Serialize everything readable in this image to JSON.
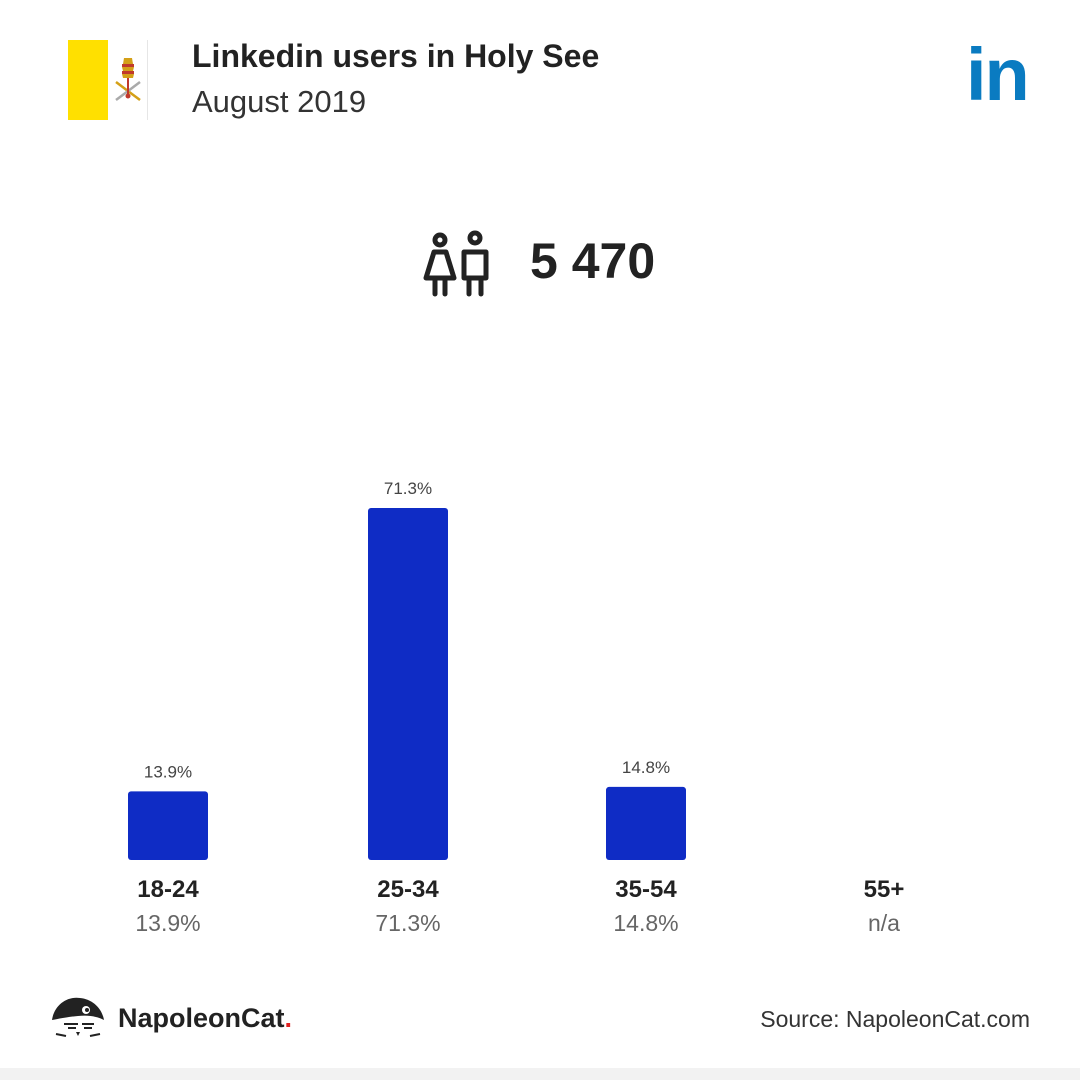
{
  "header": {
    "title": "Linkedin users in Holy See",
    "subtitle": "August 2019",
    "logo_text": "in"
  },
  "total": {
    "value": "5 470",
    "icon": "people-icon"
  },
  "chart_data": {
    "type": "bar",
    "categories": [
      "18-24",
      "25-34",
      "35-54",
      "55+"
    ],
    "values": [
      13.9,
      71.3,
      14.8,
      null
    ],
    "value_labels": [
      "13.9%",
      "71.3%",
      "14.8%",
      "n/a"
    ],
    "bar_color": "#0f2cc5",
    "ylim": [
      0,
      71.3
    ],
    "grid": false,
    "legend": "none"
  },
  "footer": {
    "brand": "NapoleonCat",
    "brand_dot": ".",
    "source": "Source: NapoleonCat.com"
  },
  "colors": {
    "flag_yellow": "#FFE000",
    "linkedin_blue": "#0a7bc1",
    "bar": "#0f2cc5",
    "brand_dot": "#e02020"
  }
}
